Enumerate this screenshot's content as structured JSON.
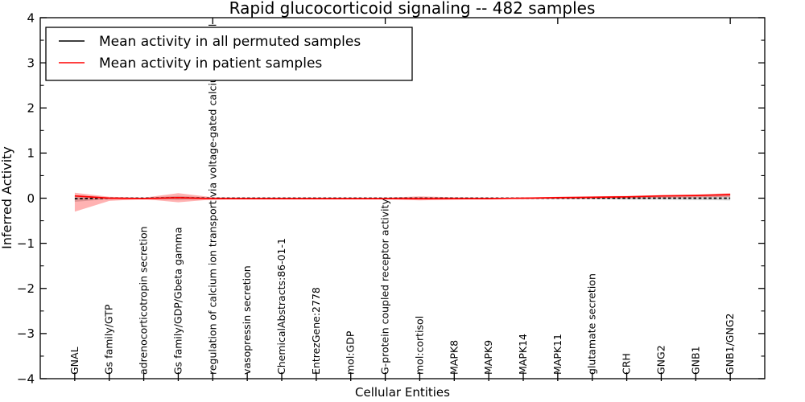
{
  "chart_data": {
    "type": "line",
    "title": "Rapid glucocorticoid signaling -- 482 samples",
    "xlabel": "Cellular Entities",
    "ylabel": "Inferred Activity",
    "xlim": [
      0,
      21
    ],
    "ylim": [
      -4,
      4
    ],
    "grid": false,
    "y_major_ticks": [
      4,
      3,
      2,
      1,
      0,
      -1,
      -2,
      -3,
      -4
    ],
    "y_tick_labels": [
      "4",
      "3",
      "2",
      "1",
      "0",
      "−1",
      "−2",
      "−3",
      "−4"
    ],
    "y_minor_step": 0.5,
    "top_axis_ticks": [
      5,
      10,
      15,
      20
    ],
    "categories": [
      "GNAL",
      "Gs family/GTP",
      "adrenocorticotropin secretion",
      "Gs family/GDP/Gbeta gamma",
      "regulation of calcium ion transport via voltage-gated calcium channel",
      "vasopressin secretion",
      "ChemicalAbstracts:86-01-1",
      "EntrezGene:2778",
      "mol:GDP",
      "G-protein coupled receptor activity",
      "mol:cortisol",
      "MAPK8",
      "MAPK9",
      "MAPK14",
      "MAPK11",
      "glutamate secretion",
      "CRH",
      "GNG2",
      "GNB1",
      "GNB1/GNG2"
    ],
    "series": [
      {
        "name": "Mean activity in all permuted samples",
        "color": "#000000",
        "style": "dashed",
        "values": [
          -0.01,
          0.0,
          0.0,
          0.01,
          0.0,
          0.0,
          0.0,
          0.0,
          0.0,
          0.0,
          0.0,
          0.0,
          0.0,
          0.0,
          0.0,
          0.0,
          0.0,
          0.0,
          0.0,
          0.0
        ]
      },
      {
        "name": "Mean activity in patient samples",
        "color": "#ff0000",
        "style": "solid",
        "values": [
          0.05,
          0.0,
          -0.01,
          0.01,
          -0.01,
          -0.01,
          -0.01,
          -0.01,
          -0.01,
          -0.01,
          -0.01,
          -0.01,
          -0.01,
          0.0,
          0.01,
          0.02,
          0.03,
          0.05,
          0.06,
          0.08
        ]
      }
    ],
    "bands": [
      {
        "name": "permuted-samples-std-band",
        "color": "#999999",
        "opacity": 0.45,
        "upper": [
          0.06,
          0.02,
          0.01,
          0.05,
          0.01,
          0.01,
          0.01,
          0.01,
          0.01,
          0.01,
          0.02,
          0.01,
          0.01,
          0.01,
          0.02,
          0.03,
          0.04,
          0.06,
          0.07,
          0.09
        ],
        "lower": [
          -0.08,
          -0.02,
          -0.01,
          -0.04,
          -0.01,
          -0.01,
          -0.01,
          -0.01,
          -0.01,
          -0.01,
          -0.02,
          -0.01,
          -0.01,
          -0.01,
          -0.02,
          -0.02,
          -0.03,
          -0.03,
          -0.04,
          -0.05
        ]
      },
      {
        "name": "patient-samples-std-band",
        "color": "#ff0000",
        "opacity": 0.3,
        "upper": [
          0.12,
          0.03,
          0.01,
          0.11,
          0.02,
          0.01,
          0.01,
          0.01,
          0.01,
          0.01,
          0.04,
          0.02,
          0.01,
          0.01,
          0.03,
          0.04,
          0.05,
          0.07,
          0.08,
          0.11
        ],
        "lower": [
          -0.3,
          -0.06,
          -0.02,
          -0.09,
          -0.03,
          -0.02,
          -0.02,
          -0.02,
          -0.02,
          -0.02,
          -0.05,
          -0.03,
          -0.02,
          -0.02,
          -0.01,
          -0.01,
          0.0,
          0.01,
          0.02,
          0.03
        ]
      }
    ],
    "legend": {
      "position": "upper left",
      "entries": [
        {
          "label": "Mean activity in all permuted samples",
          "color": "#000000"
        },
        {
          "label": "Mean activity in patient samples",
          "color": "#ff0000"
        }
      ]
    }
  }
}
